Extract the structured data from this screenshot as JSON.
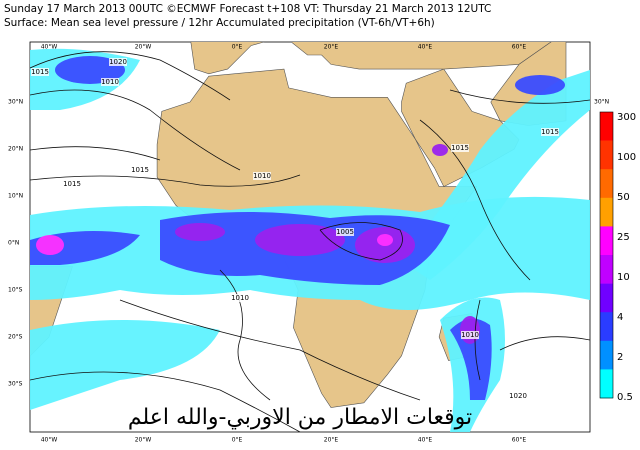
{
  "header": {
    "line1": "Sunday 17 March 2013 00UTC ©ECMWF Forecast t+108 VT: Thursday 21 March 2013 12UTC",
    "line2": "Surface: Mean sea level pressure / 12hr Accumulated precipitation (VT-6h/VT+6h)"
  },
  "map": {
    "lon_labels": [
      "40°W",
      "20°W",
      "0°E",
      "20°E",
      "40°E",
      "60°E"
    ],
    "lat_labels": [
      "30°N",
      "20°N",
      "10°N",
      "0°N",
      "10°S",
      "20°S",
      "30°S"
    ],
    "isobar_labels": [
      "1015",
      "1010",
      "1020",
      "1015",
      "1015",
      "1010",
      "1005",
      "1010",
      "1010",
      "1015",
      "1015",
      "1020"
    ]
  },
  "legend": {
    "labels": [
      "300",
      "100",
      "50",
      "25",
      "10",
      "4",
      "2",
      "0.5"
    ]
  },
  "overlay_text": "توقعات الامطار من الاوربي-والله اعلم"
}
